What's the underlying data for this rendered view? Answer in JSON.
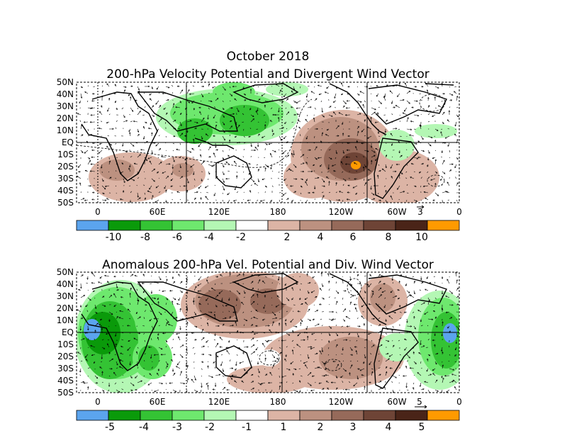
{
  "figure": {
    "title_line1": "October 2018",
    "title_line2": "200-hPa Velocity Potential and Divergent Wind Vector"
  },
  "panel1": {
    "lat_labels": [
      "50N",
      "40N",
      "30N",
      "20N",
      "10N",
      "EQ",
      "10S",
      "20S",
      "30S",
      "40S",
      "50S"
    ],
    "lon_labels": [
      "0",
      "60E",
      "120E",
      "180",
      "120W",
      "60W",
      "0"
    ],
    "ref_vector": "3",
    "colorbar_labels": [
      "-10",
      "-8",
      "-6",
      "-4",
      "-2",
      "2",
      "4",
      "6",
      "8",
      "10"
    ],
    "colorbar_colors": [
      "#5ba4ee",
      "#0a9a0a",
      "#34c334",
      "#6ee86e",
      "#b4f7b4",
      "#ffffff",
      "#dcb4a5",
      "#bc9180",
      "#966a5a",
      "#6e4436",
      "#4a2418",
      "#ff9a00"
    ]
  },
  "panel2": {
    "title": "Anomalous 200-hPa Vel. Potential and Div. Wind Vector",
    "lat_labels": [
      "50N",
      "40N",
      "30N",
      "20N",
      "10N",
      "EQ",
      "10S",
      "20S",
      "30S",
      "40S",
      "50S"
    ],
    "lon_labels": [
      "0",
      "60E",
      "120E",
      "180",
      "120W",
      "60W",
      "0"
    ],
    "ref_vector": "5",
    "colorbar_labels": [
      "-5",
      "-4",
      "-3",
      "-2",
      "-1",
      "1",
      "2",
      "3",
      "4",
      "5"
    ],
    "colorbar_colors": [
      "#5ba4ee",
      "#0a9a0a",
      "#34c334",
      "#6ee86e",
      "#b4f7b4",
      "#ffffff",
      "#dcb4a5",
      "#bc9180",
      "#966a5a",
      "#6e4436",
      "#4a2418",
      "#ff9a00"
    ]
  },
  "colors": {
    "land_outline": "#000000",
    "grid": "#000000"
  }
}
